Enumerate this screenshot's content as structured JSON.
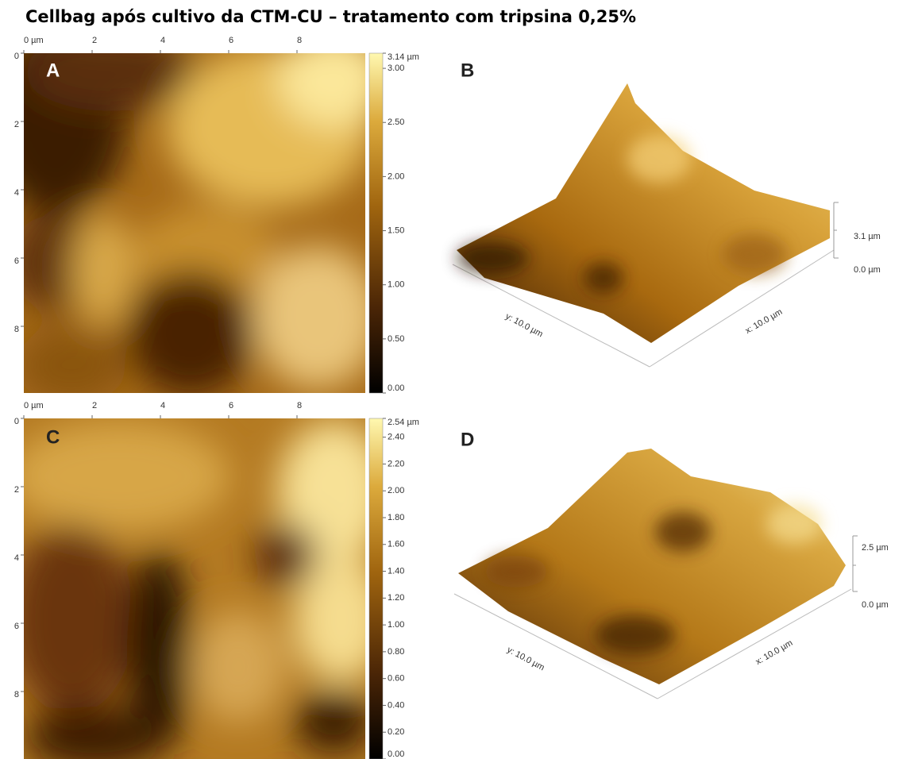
{
  "title": "Cellbag após cultivo da CTM-CU – tratamento com tripsina 0,25%",
  "panels": [
    {
      "label": "A",
      "x_ticks": [
        {
          "value": 0,
          "label": "0 µm"
        },
        2,
        4,
        6,
        8
      ],
      "y_ticks": [
        0,
        2,
        4,
        6,
        8
      ],
      "colorbar": {
        "max": {
          "value": 3.14,
          "label": "3.14 µm"
        },
        "ticks": [
          {
            "value": 3,
            "label": "3.00"
          },
          {
            "value": 2.5,
            "label": "2.50"
          },
          {
            "value": 2,
            "label": "2.00"
          },
          {
            "value": 1.5,
            "label": "1.50"
          },
          {
            "value": 1,
            "label": "1.00"
          },
          {
            "value": 0.5,
            "label": "0.50"
          },
          {
            "value": 0,
            "label": "0.00"
          }
        ]
      }
    },
    {
      "label": "B",
      "z_labels": [
        "3.1 µm",
        "0.0 µm"
      ],
      "x_label": "x: 10.0 µm",
      "y_label": "y: 10.0 µm"
    },
    {
      "label": "C",
      "x_ticks": [
        {
          "value": 0,
          "label": "0 µm"
        },
        2,
        4,
        6,
        8
      ],
      "y_ticks": [
        0,
        2,
        4,
        6,
        8
      ],
      "colorbar": {
        "max": {
          "value": 2.54,
          "label": "2.54 µm"
        },
        "ticks": [
          {
            "value": 2.4,
            "label": "2.40"
          },
          {
            "value": 2.2,
            "label": "2.20"
          },
          {
            "value": 2,
            "label": "2.00"
          },
          {
            "value": 1.8,
            "label": "1.80"
          },
          {
            "value": 1.6,
            "label": "1.60"
          },
          {
            "value": 1.4,
            "label": "1.40"
          },
          {
            "value": 1.2,
            "label": "1.20"
          },
          {
            "value": 1,
            "label": "1.00"
          },
          {
            "value": 0.8,
            "label": "0.80"
          },
          {
            "value": 0.6,
            "label": "0.60"
          },
          {
            "value": 0.4,
            "label": "0.40"
          },
          {
            "value": 0.2,
            "label": "0.20"
          },
          {
            "value": 0,
            "label": "0.00"
          }
        ]
      }
    },
    {
      "label": "D",
      "z_labels": [
        "2.5 µm",
        "0.0 µm"
      ],
      "x_label": "x: 10.0 µm",
      "y_label": "y: 10.0 µm"
    }
  ]
}
